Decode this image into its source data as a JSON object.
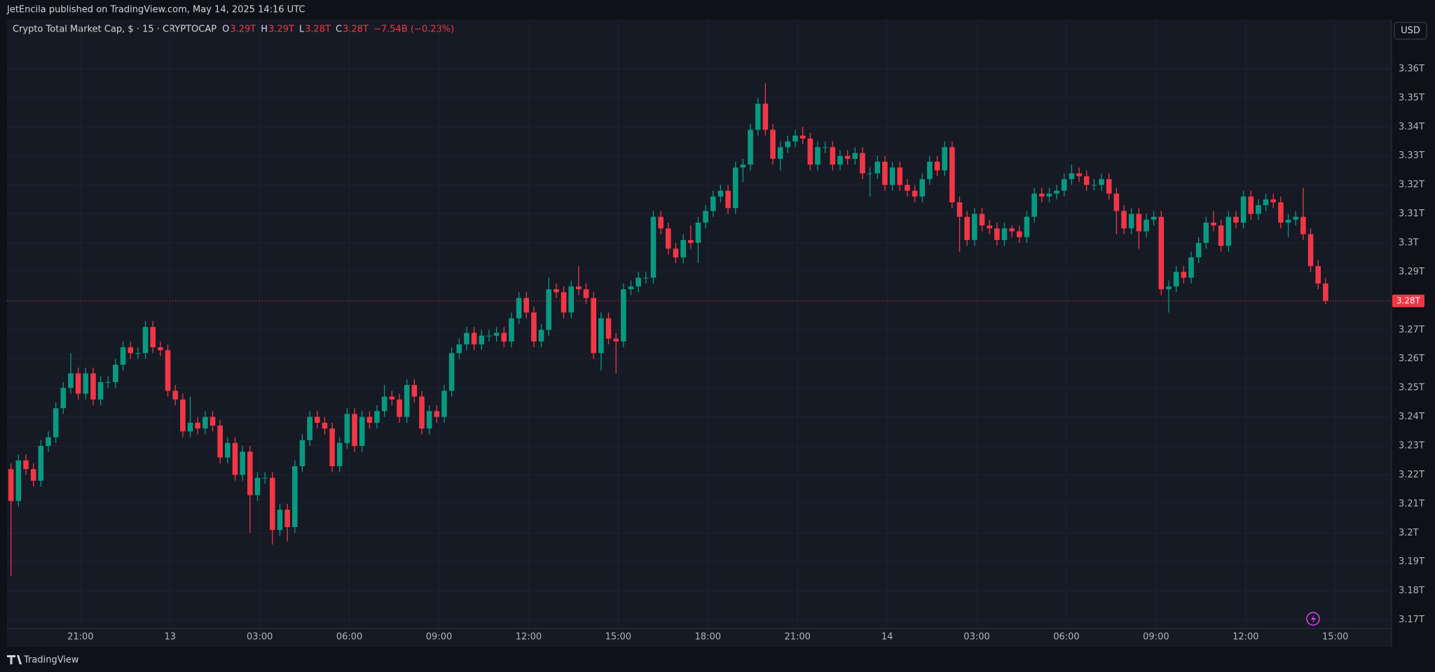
{
  "header": {
    "publisher": "JetEncila published on TradingView.com, May 14, 2025 14:16 UTC"
  },
  "chart_data": {
    "type": "candlestick",
    "title": "Crypto Total Market Cap, $ · 15 · CRYPTOCAP",
    "ohlc_legend": [
      {
        "key": "O",
        "value": "3.29T"
      },
      {
        "key": "H",
        "value": "3.29T"
      },
      {
        "key": "L",
        "value": "3.28T"
      },
      {
        "key": "C",
        "value": "3.28T"
      }
    ],
    "change": "−7.54B (−0.23%)",
    "currency": "USD",
    "price_label": "3.28T",
    "up_color": "#089981",
    "down_color": "#f23645",
    "grid": true,
    "xtick_labels": [
      "21:00",
      "13",
      "03:00",
      "06:00",
      "09:00",
      "12:00",
      "15:00",
      "18:00",
      "21:00",
      "14",
      "03:00",
      "06:00",
      "09:00",
      "12:00",
      "15:00"
    ],
    "ylim": [
      3.167,
      3.377
    ],
    "yticks": [
      {
        "value": 3.17,
        "label": "3.17T"
      },
      {
        "value": 3.18,
        "label": "3.18T"
      },
      {
        "value": 3.19,
        "label": "3.19T"
      },
      {
        "value": 3.2,
        "label": "3.2T"
      },
      {
        "value": 3.21,
        "label": "3.21T"
      },
      {
        "value": 3.22,
        "label": "3.22T"
      },
      {
        "value": 3.23,
        "label": "3.23T"
      },
      {
        "value": 3.24,
        "label": "3.24T"
      },
      {
        "value": 3.25,
        "label": "3.25T"
      },
      {
        "value": 3.26,
        "label": "3.26T"
      },
      {
        "value": 3.27,
        "label": "3.27T"
      },
      {
        "value": 3.28,
        "label": "3.28T"
      },
      {
        "value": 3.29,
        "label": "3.29T"
      },
      {
        "value": 3.3,
        "label": "3.3T"
      },
      {
        "value": 3.31,
        "label": "3.31T"
      },
      {
        "value": 3.32,
        "label": "3.32T"
      },
      {
        "value": 3.33,
        "label": "3.33T"
      },
      {
        "value": 3.34,
        "label": "3.34T"
      },
      {
        "value": 3.35,
        "label": "3.35T"
      },
      {
        "value": 3.36,
        "label": "3.36T"
      }
    ],
    "open": [
      3.222,
      3.211,
      3.225,
      3.222,
      3.218,
      3.23,
      3.233,
      3.243,
      3.25,
      3.255,
      3.248,
      3.255,
      3.246,
      3.252,
      3.252,
      3.258,
      3.264,
      3.262,
      3.262,
      3.271,
      3.264,
      3.263,
      3.249,
      3.246,
      3.235,
      3.238,
      3.236,
      3.24,
      3.237,
      3.226,
      3.231,
      3.22,
      3.228,
      3.213,
      3.219,
      3.219,
      3.201,
      3.208,
      3.202,
      3.223,
      3.232,
      3.24,
      3.238,
      3.236,
      3.223,
      3.231,
      3.241,
      3.23,
      3.24,
      3.238,
      3.242,
      3.247,
      3.246,
      3.24,
      3.251,
      3.247,
      3.236,
      3.242,
      3.24,
      3.249,
      3.262,
      3.265,
      3.269,
      3.265,
      3.268,
      3.268,
      3.269,
      3.266,
      3.274,
      3.281,
      3.276,
      3.266,
      3.27,
      3.284,
      3.283,
      3.276,
      3.285,
      3.284,
      3.281,
      3.262,
      3.274,
      3.267,
      3.266,
      3.284,
      3.285,
      3.288,
      3.288,
      3.309,
      3.305,
      3.298,
      3.295,
      3.301,
      3.3,
      3.307,
      3.311,
      3.316,
      3.318,
      3.312,
      3.326,
      3.327,
      3.339,
      3.348,
      3.339,
      3.329,
      3.333,
      3.335,
      3.337,
      3.336,
      3.327,
      3.333,
      3.333,
      3.327,
      3.33,
      3.329,
      3.331,
      3.324,
      3.324,
      3.328,
      3.32,
      3.326,
      3.32,
      3.318,
      3.316,
      3.322,
      3.328,
      3.325,
      3.333,
      3.314,
      3.309,
      3.301,
      3.31,
      3.306,
      3.305,
      3.301,
      3.305,
      3.304,
      3.302,
      3.309,
      3.317,
      3.316,
      3.317,
      3.318,
      3.322,
      3.324,
      3.323,
      3.32,
      3.32,
      3.322,
      3.317,
      3.311,
      3.305,
      3.31,
      3.304,
      3.308,
      3.309,
      3.284,
      3.285,
      3.29,
      3.288,
      3.295,
      3.3,
      3.307,
      3.306,
      3.299,
      3.309,
      3.307,
      3.316,
      3.31,
      3.313,
      3.315,
      3.314,
      3.307,
      3.308,
      3.309,
      3.303,
      3.292,
      3.286
    ],
    "high": [
      3.224,
      3.227,
      3.227,
      3.224,
      3.232,
      3.235,
      3.245,
      3.252,
      3.262,
      3.257,
      3.257,
      3.257,
      3.254,
      3.254,
      3.26,
      3.266,
      3.266,
      3.264,
      3.273,
      3.273,
      3.266,
      3.265,
      3.251,
      3.248,
      3.247,
      3.24,
      3.242,
      3.242,
      3.239,
      3.233,
      3.233,
      3.23,
      3.23,
      3.221,
      3.221,
      3.221,
      3.21,
      3.21,
      3.225,
      3.234,
      3.242,
      3.242,
      3.24,
      3.238,
      3.233,
      3.243,
      3.243,
      3.242,
      3.242,
      3.244,
      3.251,
      3.249,
      3.248,
      3.253,
      3.253,
      3.249,
      3.244,
      3.244,
      3.251,
      3.264,
      3.267,
      3.271,
      3.271,
      3.27,
      3.27,
      3.271,
      3.271,
      3.276,
      3.283,
      3.283,
      3.278,
      3.272,
      3.288,
      3.286,
      3.285,
      3.287,
      3.292,
      3.286,
      3.283,
      3.276,
      3.276,
      3.269,
      3.286,
      3.287,
      3.29,
      3.29,
      3.311,
      3.311,
      3.307,
      3.3,
      3.303,
      3.306,
      3.309,
      3.313,
      3.318,
      3.32,
      3.32,
      3.328,
      3.329,
      3.341,
      3.35,
      3.355,
      3.341,
      3.335,
      3.337,
      3.339,
      3.34,
      3.338,
      3.335,
      3.335,
      3.335,
      3.332,
      3.332,
      3.333,
      3.333,
      3.326,
      3.33,
      3.33,
      3.328,
      3.328,
      3.322,
      3.32,
      3.324,
      3.33,
      3.33,
      3.335,
      3.335,
      3.316,
      3.311,
      3.312,
      3.312,
      3.308,
      3.307,
      3.307,
      3.306,
      3.306,
      3.311,
      3.319,
      3.319,
      3.319,
      3.32,
      3.324,
      3.327,
      3.326,
      3.325,
      3.322,
      3.324,
      3.324,
      3.319,
      3.313,
      3.312,
      3.312,
      3.31,
      3.311,
      3.311,
      3.287,
      3.292,
      3.292,
      3.297,
      3.302,
      3.309,
      3.311,
      3.308,
      3.311,
      3.311,
      3.318,
      3.318,
      3.315,
      3.317,
      3.317,
      3.316,
      3.31,
      3.311,
      3.319,
      3.305,
      3.294,
      3.288
    ],
    "low": [
      3.185,
      3.209,
      3.22,
      3.216,
      3.216,
      3.228,
      3.231,
      3.241,
      3.248,
      3.246,
      3.246,
      3.244,
      3.244,
      3.25,
      3.25,
      3.256,
      3.26,
      3.26,
      3.26,
      3.262,
      3.261,
      3.247,
      3.244,
      3.233,
      3.233,
      3.234,
      3.234,
      3.235,
      3.224,
      3.224,
      3.218,
      3.218,
      3.2,
      3.211,
      3.217,
      3.196,
      3.199,
      3.197,
      3.2,
      3.221,
      3.23,
      3.236,
      3.234,
      3.221,
      3.221,
      3.229,
      3.228,
      3.228,
      3.236,
      3.236,
      3.24,
      3.244,
      3.238,
      3.238,
      3.245,
      3.234,
      3.234,
      3.238,
      3.238,
      3.247,
      3.26,
      3.263,
      3.263,
      3.263,
      3.266,
      3.266,
      3.264,
      3.264,
      3.272,
      3.274,
      3.264,
      3.264,
      3.268,
      3.281,
      3.274,
      3.274,
      3.282,
      3.279,
      3.26,
      3.256,
      3.265,
      3.255,
      3.264,
      3.282,
      3.283,
      3.286,
      3.286,
      3.303,
      3.296,
      3.293,
      3.293,
      3.298,
      3.293,
      3.305,
      3.309,
      3.314,
      3.31,
      3.31,
      3.321,
      3.325,
      3.337,
      3.337,
      3.327,
      3.325,
      3.331,
      3.333,
      3.334,
      3.325,
      3.325,
      3.331,
      3.325,
      3.325,
      3.327,
      3.327,
      3.322,
      3.316,
      3.322,
      3.318,
      3.318,
      3.318,
      3.316,
      3.314,
      3.314,
      3.32,
      3.323,
      3.323,
      3.312,
      3.297,
      3.299,
      3.299,
      3.304,
      3.303,
      3.299,
      3.299,
      3.302,
      3.3,
      3.3,
      3.307,
      3.314,
      3.314,
      3.315,
      3.316,
      3.32,
      3.321,
      3.318,
      3.318,
      3.318,
      3.315,
      3.303,
      3.303,
      3.303,
      3.298,
      3.302,
      3.306,
      3.282,
      3.276,
      3.283,
      3.286,
      3.286,
      3.293,
      3.298,
      3.304,
      3.297,
      3.297,
      3.305,
      3.305,
      3.308,
      3.308,
      3.311,
      3.312,
      3.305,
      3.302,
      3.306,
      3.301,
      3.29,
      3.284,
      3.279
    ],
    "close": [
      3.211,
      3.225,
      3.222,
      3.218,
      3.23,
      3.233,
      3.243,
      3.25,
      3.255,
      3.248,
      3.255,
      3.246,
      3.252,
      3.252,
      3.258,
      3.264,
      3.262,
      3.262,
      3.271,
      3.264,
      3.263,
      3.249,
      3.246,
      3.235,
      3.238,
      3.236,
      3.24,
      3.237,
      3.226,
      3.231,
      3.22,
      3.228,
      3.213,
      3.219,
      3.219,
      3.201,
      3.208,
      3.202,
      3.223,
      3.232,
      3.24,
      3.238,
      3.236,
      3.223,
      3.231,
      3.241,
      3.23,
      3.24,
      3.238,
      3.242,
      3.247,
      3.246,
      3.24,
      3.251,
      3.247,
      3.236,
      3.242,
      3.24,
      3.249,
      3.262,
      3.265,
      3.269,
      3.265,
      3.268,
      3.268,
      3.269,
      3.266,
      3.274,
      3.281,
      3.276,
      3.266,
      3.27,
      3.284,
      3.283,
      3.276,
      3.285,
      3.284,
      3.281,
      3.262,
      3.274,
      3.267,
      3.266,
      3.284,
      3.285,
      3.288,
      3.288,
      3.309,
      3.305,
      3.298,
      3.295,
      3.301,
      3.3,
      3.307,
      3.311,
      3.316,
      3.318,
      3.312,
      3.326,
      3.327,
      3.339,
      3.348,
      3.339,
      3.329,
      3.333,
      3.335,
      3.337,
      3.336,
      3.327,
      3.333,
      3.333,
      3.327,
      3.33,
      3.329,
      3.331,
      3.324,
      3.324,
      3.328,
      3.32,
      3.326,
      3.32,
      3.318,
      3.316,
      3.322,
      3.328,
      3.325,
      3.333,
      3.314,
      3.309,
      3.301,
      3.31,
      3.306,
      3.305,
      3.301,
      3.305,
      3.304,
      3.302,
      3.309,
      3.317,
      3.316,
      3.317,
      3.318,
      3.322,
      3.324,
      3.323,
      3.32,
      3.32,
      3.322,
      3.317,
      3.311,
      3.305,
      3.31,
      3.304,
      3.308,
      3.309,
      3.284,
      3.285,
      3.29,
      3.288,
      3.295,
      3.3,
      3.307,
      3.306,
      3.299,
      3.309,
      3.307,
      3.316,
      3.31,
      3.313,
      3.315,
      3.314,
      3.307,
      3.308,
      3.309,
      3.303,
      3.292,
      3.286,
      3.28
    ]
  },
  "footer": {
    "brand": "TradingView"
  }
}
